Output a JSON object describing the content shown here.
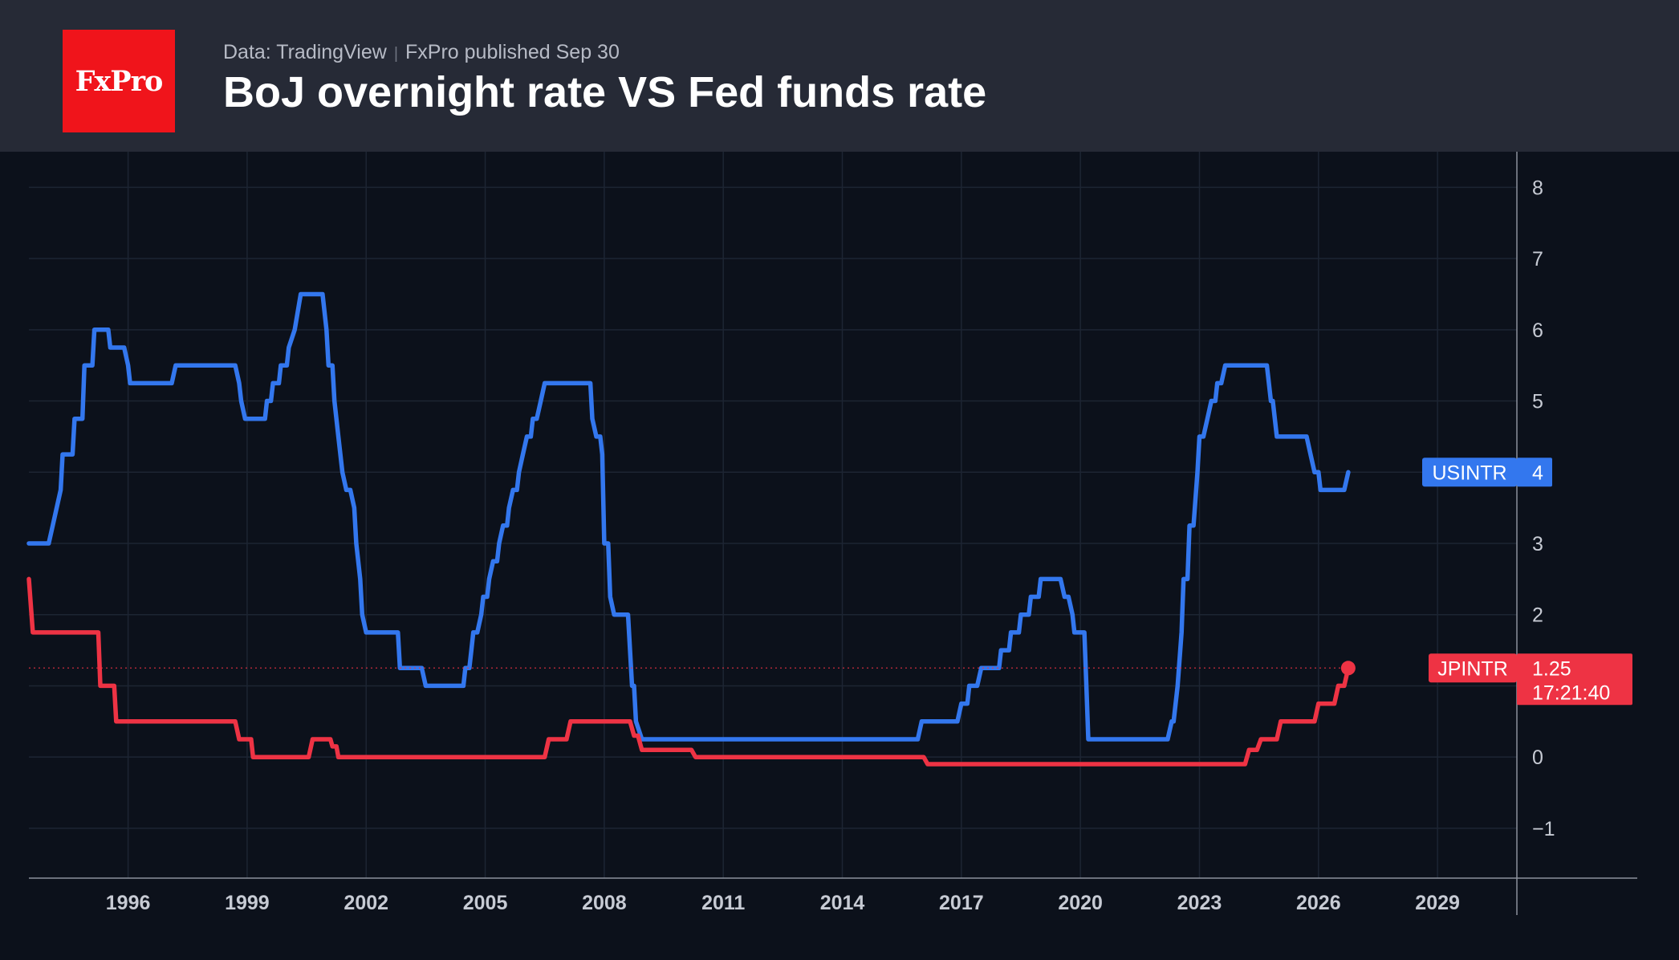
{
  "header": {
    "logo_text": "FxPro",
    "source": "Data: TradingView",
    "published": "FxPro published Sep 30",
    "title": "BoJ overnight rate VS Fed funds rate"
  },
  "chart_data": {
    "type": "line",
    "title": "BoJ overnight rate VS Fed funds rate",
    "xlabel": "",
    "ylabel": "",
    "x_ticks": [
      "1996",
      "1999",
      "2002",
      "2005",
      "2008",
      "2011",
      "2014",
      "2017",
      "2020",
      "2023",
      "2026",
      "2029"
    ],
    "y_ticks": [
      "8",
      "7",
      "6",
      "5",
      "4",
      "3",
      "2",
      "1",
      "0",
      "−1"
    ],
    "xlim": [
      1993.5,
      2031.0
    ],
    "ylim": [
      -1.7,
      8.5
    ],
    "grid": true,
    "series": [
      {
        "name": "USINTR",
        "color": "#3377ee",
        "last_value": "4",
        "points": [
          [
            1993.5,
            3.0
          ],
          [
            1994.0,
            3.0
          ],
          [
            1994.1,
            3.25
          ],
          [
            1994.3,
            3.75
          ],
          [
            1994.35,
            4.25
          ],
          [
            1994.6,
            4.25
          ],
          [
            1994.65,
            4.75
          ],
          [
            1994.85,
            4.75
          ],
          [
            1994.9,
            5.5
          ],
          [
            1995.1,
            5.5
          ],
          [
            1995.15,
            6.0
          ],
          [
            1995.5,
            6.0
          ],
          [
            1995.55,
            5.75
          ],
          [
            1995.9,
            5.75
          ],
          [
            1996.0,
            5.5
          ],
          [
            1996.05,
            5.25
          ],
          [
            1997.1,
            5.25
          ],
          [
            1997.2,
            5.5
          ],
          [
            1998.7,
            5.5
          ],
          [
            1998.8,
            5.25
          ],
          [
            1998.85,
            5.0
          ],
          [
            1998.95,
            4.75
          ],
          [
            1999.45,
            4.75
          ],
          [
            1999.5,
            5.0
          ],
          [
            1999.6,
            5.0
          ],
          [
            1999.65,
            5.25
          ],
          [
            1999.8,
            5.25
          ],
          [
            1999.85,
            5.5
          ],
          [
            2000.0,
            5.5
          ],
          [
            2000.05,
            5.75
          ],
          [
            2000.2,
            6.0
          ],
          [
            2000.35,
            6.5
          ],
          [
            2000.9,
            6.5
          ],
          [
            2001.0,
            6.0
          ],
          [
            2001.05,
            5.5
          ],
          [
            2001.15,
            5.5
          ],
          [
            2001.2,
            5.0
          ],
          [
            2001.3,
            4.5
          ],
          [
            2001.4,
            4.0
          ],
          [
            2001.5,
            3.75
          ],
          [
            2001.6,
            3.75
          ],
          [
            2001.7,
            3.5
          ],
          [
            2001.75,
            3.0
          ],
          [
            2001.85,
            2.5
          ],
          [
            2001.9,
            2.0
          ],
          [
            2002.0,
            1.75
          ],
          [
            2002.8,
            1.75
          ],
          [
            2002.85,
            1.25
          ],
          [
            2003.4,
            1.25
          ],
          [
            2003.5,
            1.0
          ],
          [
            2004.45,
            1.0
          ],
          [
            2004.5,
            1.25
          ],
          [
            2004.6,
            1.25
          ],
          [
            2004.65,
            1.5
          ],
          [
            2004.7,
            1.75
          ],
          [
            2004.8,
            1.75
          ],
          [
            2004.9,
            2.0
          ],
          [
            2004.95,
            2.25
          ],
          [
            2005.05,
            2.25
          ],
          [
            2005.1,
            2.5
          ],
          [
            2005.2,
            2.75
          ],
          [
            2005.3,
            2.75
          ],
          [
            2005.35,
            3.0
          ],
          [
            2005.45,
            3.25
          ],
          [
            2005.55,
            3.25
          ],
          [
            2005.6,
            3.5
          ],
          [
            2005.7,
            3.75
          ],
          [
            2005.8,
            3.75
          ],
          [
            2005.85,
            4.0
          ],
          [
            2005.95,
            4.25
          ],
          [
            2006.05,
            4.5
          ],
          [
            2006.15,
            4.5
          ],
          [
            2006.2,
            4.75
          ],
          [
            2006.3,
            4.75
          ],
          [
            2006.4,
            5.0
          ],
          [
            2006.5,
            5.25
          ],
          [
            2007.65,
            5.25
          ],
          [
            2007.7,
            4.75
          ],
          [
            2007.8,
            4.5
          ],
          [
            2007.9,
            4.5
          ],
          [
            2007.95,
            4.25
          ],
          [
            2008.0,
            3.0
          ],
          [
            2008.1,
            3.0
          ],
          [
            2008.15,
            2.25
          ],
          [
            2008.25,
            2.0
          ],
          [
            2008.6,
            2.0
          ],
          [
            2008.7,
            1.0
          ],
          [
            2008.75,
            1.0
          ],
          [
            2008.8,
            0.5
          ],
          [
            2008.95,
            0.25
          ],
          [
            2015.9,
            0.25
          ],
          [
            2016.0,
            0.5
          ],
          [
            2016.9,
            0.5
          ],
          [
            2017.0,
            0.75
          ],
          [
            2017.15,
            0.75
          ],
          [
            2017.2,
            1.0
          ],
          [
            2017.4,
            1.0
          ],
          [
            2017.5,
            1.25
          ],
          [
            2017.95,
            1.25
          ],
          [
            2018.0,
            1.5
          ],
          [
            2018.2,
            1.5
          ],
          [
            2018.25,
            1.75
          ],
          [
            2018.45,
            1.75
          ],
          [
            2018.5,
            2.0
          ],
          [
            2018.7,
            2.0
          ],
          [
            2018.75,
            2.25
          ],
          [
            2018.95,
            2.25
          ],
          [
            2019.0,
            2.5
          ],
          [
            2019.5,
            2.5
          ],
          [
            2019.6,
            2.25
          ],
          [
            2019.7,
            2.25
          ],
          [
            2019.8,
            2.0
          ],
          [
            2019.85,
            1.75
          ],
          [
            2020.1,
            1.75
          ],
          [
            2020.15,
            1.0
          ],
          [
            2020.2,
            0.25
          ],
          [
            2022.2,
            0.25
          ],
          [
            2022.3,
            0.5
          ],
          [
            2022.35,
            0.5
          ],
          [
            2022.45,
            1.0
          ],
          [
            2022.55,
            1.75
          ],
          [
            2022.6,
            2.5
          ],
          [
            2022.7,
            2.5
          ],
          [
            2022.75,
            3.25
          ],
          [
            2022.85,
            3.25
          ],
          [
            2022.95,
            4.0
          ],
          [
            2023.0,
            4.5
          ],
          [
            2023.1,
            4.5
          ],
          [
            2023.2,
            4.75
          ],
          [
            2023.3,
            5.0
          ],
          [
            2023.4,
            5.0
          ],
          [
            2023.45,
            5.25
          ],
          [
            2023.55,
            5.25
          ],
          [
            2023.65,
            5.5
          ],
          [
            2024.7,
            5.5
          ],
          [
            2024.8,
            5.0
          ],
          [
            2024.85,
            5.0
          ],
          [
            2024.9,
            4.75
          ],
          [
            2024.95,
            4.5
          ],
          [
            2025.7,
            4.5
          ],
          [
            2025.8,
            4.25
          ],
          [
            2025.9,
            4.0
          ],
          [
            2026.0,
            4.0
          ],
          [
            2026.05,
            3.75
          ],
          [
            2026.65,
            3.75
          ],
          [
            2026.75,
            4.0
          ]
        ]
      },
      {
        "name": "JPINTR",
        "color": "#ee3344",
        "last_value": "1.25",
        "countdown": "17:21:40",
        "points": [
          [
            1993.5,
            2.5
          ],
          [
            1993.6,
            1.75
          ],
          [
            1995.25,
            1.75
          ],
          [
            1995.3,
            1.0
          ],
          [
            1995.65,
            1.0
          ],
          [
            1995.7,
            0.5
          ],
          [
            1998.7,
            0.5
          ],
          [
            1998.8,
            0.25
          ],
          [
            1999.1,
            0.25
          ],
          [
            1999.15,
            0.0
          ],
          [
            2000.55,
            0.0
          ],
          [
            2000.65,
            0.25
          ],
          [
            2001.1,
            0.25
          ],
          [
            2001.15,
            0.15
          ],
          [
            2001.25,
            0.15
          ],
          [
            2001.3,
            0.0
          ],
          [
            2006.5,
            0.0
          ],
          [
            2006.6,
            0.25
          ],
          [
            2007.05,
            0.25
          ],
          [
            2007.15,
            0.5
          ],
          [
            2008.65,
            0.5
          ],
          [
            2008.75,
            0.3
          ],
          [
            2008.85,
            0.3
          ],
          [
            2008.95,
            0.1
          ],
          [
            2010.2,
            0.1
          ],
          [
            2010.3,
            0.0
          ],
          [
            2016.05,
            0.0
          ],
          [
            2016.15,
            -0.1
          ],
          [
            2024.15,
            -0.1
          ],
          [
            2024.25,
            0.1
          ],
          [
            2024.45,
            0.1
          ],
          [
            2024.55,
            0.25
          ],
          [
            2024.95,
            0.25
          ],
          [
            2025.05,
            0.5
          ],
          [
            2025.9,
            0.5
          ],
          [
            2026.0,
            0.75
          ],
          [
            2026.4,
            0.75
          ],
          [
            2026.5,
            1.0
          ],
          [
            2026.65,
            1.0
          ],
          [
            2026.75,
            1.25
          ]
        ]
      }
    ]
  }
}
